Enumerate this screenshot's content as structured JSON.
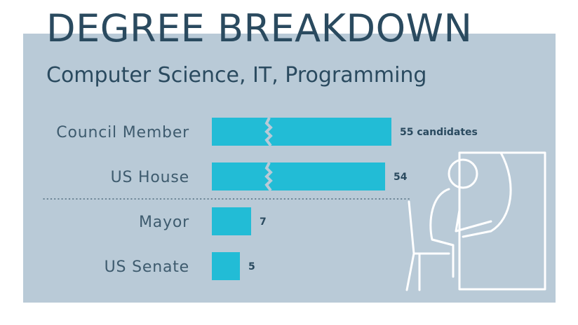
{
  "chart_data": {
    "type": "bar",
    "orientation": "horizontal",
    "title": "DEGREE BREAKDOWN",
    "subtitle": "Computer Science, IT, Programming",
    "categories": [
      "Council Member",
      "US House",
      "Mayor",
      "US Senate"
    ],
    "values": [
      55,
      54,
      7,
      5
    ],
    "value_labels": [
      "55 candidates",
      "54",
      "7",
      "5"
    ],
    "axis_break_after_index": 1,
    "broken_bars": [
      0,
      1
    ],
    "grid": false,
    "legend": "none",
    "colors": {
      "bar": "#22bcd6",
      "panel": "#b9cad7",
      "text": "#2a4a5f"
    }
  },
  "illustration": {
    "icon": "person-at-computer-icon"
  }
}
